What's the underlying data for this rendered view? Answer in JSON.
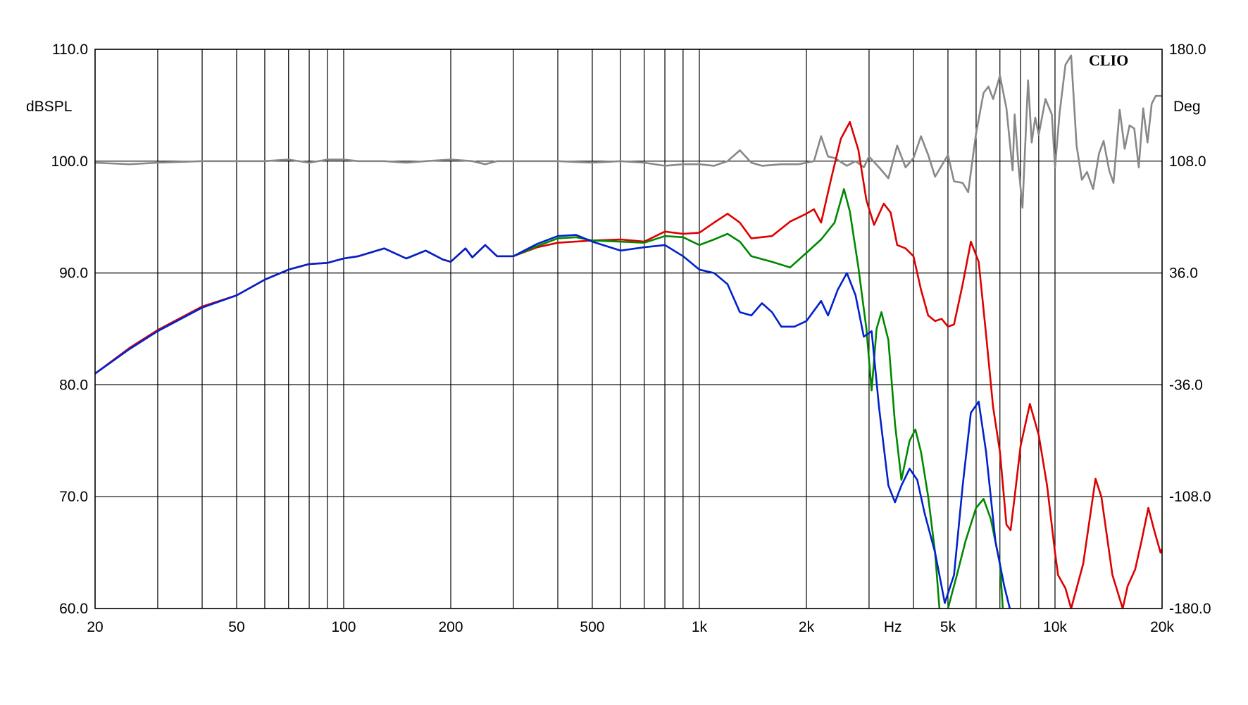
{
  "chart_data": {
    "type": "line",
    "brand": "CLIO",
    "x_scale": "log",
    "xlim": [
      20,
      20000
    ],
    "x_ticks": [
      {
        "value": 20,
        "label": "20"
      },
      {
        "value": 50,
        "label": "50"
      },
      {
        "value": 100,
        "label": "100"
      },
      {
        "value": 200,
        "label": "200"
      },
      {
        "value": 500,
        "label": "500"
      },
      {
        "value": 1000,
        "label": "1k"
      },
      {
        "value": 2000,
        "label": "2k"
      },
      {
        "value": 5000,
        "label": "5k"
      },
      {
        "value": 10000,
        "label": "10k"
      },
      {
        "value": 20000,
        "label": "20k"
      }
    ],
    "x_unit_label": "Hz",
    "x_unit_position_hz": 3500,
    "x_gridlines": [
      20,
      30,
      40,
      50,
      60,
      70,
      80,
      90,
      100,
      200,
      300,
      400,
      500,
      600,
      700,
      800,
      900,
      1000,
      2000,
      3000,
      4000,
      5000,
      6000,
      7000,
      8000,
      9000,
      10000,
      20000
    ],
    "y_left": {
      "label": "dBSPL",
      "lim": [
        60,
        110
      ],
      "ticks": [
        {
          "value": 110,
          "label": "110.0"
        },
        {
          "value": 100,
          "label": "100.0"
        },
        {
          "value": 90,
          "label": "90.0"
        },
        {
          "value": 80,
          "label": "80.0"
        },
        {
          "value": 70,
          "label": "70.0"
        },
        {
          "value": 60,
          "label": "60.0"
        }
      ]
    },
    "y_right": {
      "label": "Deg",
      "lim": [
        -180,
        180
      ],
      "ticks": [
        {
          "value": 180,
          "label": "180.0"
        },
        {
          "value": 108,
          "label": "108.0"
        },
        {
          "value": 36,
          "label": "36.0"
        },
        {
          "value": -36,
          "label": "-36.0"
        },
        {
          "value": -108,
          "label": "-108.0"
        },
        {
          "value": -180,
          "label": "-180.0"
        }
      ]
    },
    "grid": true,
    "series": [
      {
        "color": "#888888",
        "axis": "right",
        "points": [
          [
            20,
            107
          ],
          [
            25,
            106
          ],
          [
            30,
            107
          ],
          [
            40,
            108
          ],
          [
            50,
            108
          ],
          [
            60,
            108
          ],
          [
            70,
            109
          ],
          [
            80,
            107
          ],
          [
            90,
            109
          ],
          [
            100,
            109
          ],
          [
            110,
            108
          ],
          [
            130,
            108
          ],
          [
            150,
            107
          ],
          [
            170,
            108
          ],
          [
            200,
            109
          ],
          [
            230,
            108
          ],
          [
            250,
            106
          ],
          [
            270,
            108
          ],
          [
            300,
            108
          ],
          [
            400,
            108
          ],
          [
            500,
            107
          ],
          [
            600,
            108
          ],
          [
            700,
            107
          ],
          [
            800,
            105
          ],
          [
            900,
            106
          ],
          [
            1000,
            106
          ],
          [
            1100,
            105
          ],
          [
            1200,
            108
          ],
          [
            1300,
            115
          ],
          [
            1400,
            107
          ],
          [
            1500,
            105
          ],
          [
            1700,
            106
          ],
          [
            1900,
            106
          ],
          [
            2000,
            107
          ],
          [
            2100,
            108
          ],
          [
            2200,
            124
          ],
          [
            2300,
            111
          ],
          [
            2400,
            110
          ],
          [
            2600,
            105
          ],
          [
            2750,
            108
          ],
          [
            2900,
            104
          ],
          [
            3000,
            111
          ],
          [
            3200,
            104
          ],
          [
            3400,
            97
          ],
          [
            3600,
            118
          ],
          [
            3800,
            104
          ],
          [
            4000,
            110
          ],
          [
            4200,
            124
          ],
          [
            4400,
            112
          ],
          [
            4600,
            98
          ],
          [
            5000,
            112
          ],
          [
            5200,
            95
          ],
          [
            5500,
            94
          ],
          [
            5700,
            88
          ],
          [
            6000,
            126
          ],
          [
            6300,
            152
          ],
          [
            6500,
            156
          ],
          [
            6700,
            148
          ],
          [
            7000,
            163
          ],
          [
            7300,
            142
          ],
          [
            7600,
            102
          ],
          [
            7700,
            138
          ],
          [
            7900,
            104
          ],
          [
            8100,
            78
          ],
          [
            8400,
            160
          ],
          [
            8600,
            120
          ],
          [
            8800,
            136
          ],
          [
            9000,
            125
          ],
          [
            9400,
            148
          ],
          [
            9800,
            138
          ],
          [
            10000,
            104
          ],
          [
            10300,
            139
          ],
          [
            10700,
            170
          ],
          [
            11100,
            176
          ],
          [
            11500,
            118
          ],
          [
            11900,
            96
          ],
          [
            12300,
            101
          ],
          [
            12800,
            90
          ],
          [
            13300,
            113
          ],
          [
            13700,
            121
          ],
          [
            14200,
            102
          ],
          [
            14600,
            94
          ],
          [
            15200,
            141
          ],
          [
            15700,
            116
          ],
          [
            16200,
            131
          ],
          [
            16700,
            129
          ],
          [
            17200,
            104
          ],
          [
            17700,
            142
          ],
          [
            18200,
            120
          ],
          [
            18700,
            145
          ],
          [
            19200,
            150
          ],
          [
            19600,
            150
          ],
          [
            20000,
            150
          ]
        ]
      },
      {
        "color": "#dd0000",
        "axis": "left",
        "points": [
          [
            20,
            81
          ],
          [
            25,
            83.3
          ],
          [
            30,
            84.9
          ],
          [
            40,
            87
          ],
          [
            50,
            88
          ],
          [
            60,
            89.4
          ],
          [
            70,
            90.3
          ],
          [
            80,
            90.8
          ],
          [
            90,
            90.9
          ],
          [
            100,
            91.3
          ],
          [
            110,
            91.5
          ],
          [
            130,
            92.2
          ],
          [
            150,
            91.3
          ],
          [
            170,
            92
          ],
          [
            190,
            91.2
          ],
          [
            200,
            91
          ],
          [
            220,
            92.2
          ],
          [
            230,
            91.4
          ],
          [
            250,
            92.5
          ],
          [
            270,
            91.5
          ],
          [
            300,
            91.5
          ],
          [
            350,
            92.3
          ],
          [
            400,
            92.7
          ],
          [
            500,
            92.9
          ],
          [
            600,
            93
          ],
          [
            700,
            92.8
          ],
          [
            800,
            93.7
          ],
          [
            900,
            93.5
          ],
          [
            1000,
            93.6
          ],
          [
            1100,
            94.5
          ],
          [
            1200,
            95.3
          ],
          [
            1300,
            94.5
          ],
          [
            1400,
            93.1
          ],
          [
            1600,
            93.3
          ],
          [
            1800,
            94.6
          ],
          [
            2000,
            95.3
          ],
          [
            2100,
            95.7
          ],
          [
            2200,
            94.5
          ],
          [
            2350,
            98.5
          ],
          [
            2500,
            102
          ],
          [
            2650,
            103.5
          ],
          [
            2800,
            101
          ],
          [
            2950,
            96.5
          ],
          [
            3100,
            94.3
          ],
          [
            3300,
            96.2
          ],
          [
            3450,
            95.4
          ],
          [
            3600,
            92.5
          ],
          [
            3800,
            92.2
          ],
          [
            4000,
            91.5
          ],
          [
            4200,
            88.5
          ],
          [
            4400,
            86.2
          ],
          [
            4600,
            85.7
          ],
          [
            4800,
            85.9
          ],
          [
            5000,
            85.2
          ],
          [
            5200,
            85.4
          ],
          [
            5500,
            89
          ],
          [
            5800,
            92.8
          ],
          [
            6100,
            91
          ],
          [
            6400,
            84.5
          ],
          [
            6700,
            78
          ],
          [
            7000,
            74
          ],
          [
            7300,
            67.5
          ],
          [
            7500,
            67
          ],
          [
            7700,
            70
          ],
          [
            8000,
            74.5
          ],
          [
            8500,
            78.3
          ],
          [
            9000,
            75.5
          ],
          [
            9500,
            71
          ],
          [
            10000,
            65
          ],
          [
            10200,
            63
          ],
          [
            10700,
            61.8
          ],
          [
            11100,
            60
          ],
          [
            12000,
            64
          ],
          [
            13000,
            71.6
          ],
          [
            13500,
            70
          ],
          [
            14500,
            63
          ],
          [
            15500,
            60
          ],
          [
            16000,
            62
          ],
          [
            16800,
            63.5
          ],
          [
            17500,
            66
          ],
          [
            18300,
            69
          ],
          [
            19000,
            67
          ],
          [
            19800,
            65
          ],
          [
            20000,
            65.3
          ]
        ]
      },
      {
        "color": "#008800",
        "axis": "left",
        "points": [
          [
            300,
            91.5
          ],
          [
            350,
            92.4
          ],
          [
            400,
            93.1
          ],
          [
            450,
            93.2
          ],
          [
            500,
            92.9
          ],
          [
            600,
            92.8
          ],
          [
            700,
            92.7
          ],
          [
            800,
            93.3
          ],
          [
            900,
            93.2
          ],
          [
            1000,
            92.5
          ],
          [
            1100,
            93
          ],
          [
            1200,
            93.5
          ],
          [
            1300,
            92.8
          ],
          [
            1400,
            91.5
          ],
          [
            1600,
            91
          ],
          [
            1800,
            90.5
          ],
          [
            2000,
            91.8
          ],
          [
            2200,
            93
          ],
          [
            2400,
            94.5
          ],
          [
            2550,
            97.5
          ],
          [
            2650,
            95.5
          ],
          [
            2800,
            90.5
          ],
          [
            2950,
            85
          ],
          [
            3050,
            79.5
          ],
          [
            3150,
            85
          ],
          [
            3250,
            86.5
          ],
          [
            3400,
            84
          ],
          [
            3550,
            76.5
          ],
          [
            3700,
            71.5
          ],
          [
            3900,
            75
          ],
          [
            4050,
            76
          ],
          [
            4200,
            74
          ],
          [
            4400,
            70
          ],
          [
            4600,
            65
          ],
          [
            4800,
            57.5
          ],
          [
            5000,
            60
          ],
          [
            5300,
            63
          ],
          [
            5600,
            66
          ],
          [
            6000,
            69
          ],
          [
            6300,
            69.8
          ],
          [
            6600,
            68
          ],
          [
            7000,
            64
          ],
          [
            7200,
            58
          ]
        ]
      },
      {
        "color": "#0022cc",
        "axis": "left",
        "points": [
          [
            20,
            81
          ],
          [
            25,
            83.2
          ],
          [
            30,
            84.8
          ],
          [
            40,
            86.9
          ],
          [
            50,
            88
          ],
          [
            60,
            89.4
          ],
          [
            70,
            90.3
          ],
          [
            80,
            90.8
          ],
          [
            90,
            90.9
          ],
          [
            100,
            91.3
          ],
          [
            110,
            91.5
          ],
          [
            130,
            92.2
          ],
          [
            150,
            91.3
          ],
          [
            170,
            92
          ],
          [
            190,
            91.2
          ],
          [
            200,
            91
          ],
          [
            220,
            92.2
          ],
          [
            230,
            91.4
          ],
          [
            250,
            92.5
          ],
          [
            270,
            91.5
          ],
          [
            300,
            91.5
          ],
          [
            350,
            92.6
          ],
          [
            400,
            93.3
          ],
          [
            450,
            93.4
          ],
          [
            500,
            92.8
          ],
          [
            600,
            92
          ],
          [
            700,
            92.3
          ],
          [
            800,
            92.5
          ],
          [
            900,
            91.5
          ],
          [
            1000,
            90.3
          ],
          [
            1100,
            90
          ],
          [
            1200,
            89
          ],
          [
            1300,
            86.5
          ],
          [
            1400,
            86.2
          ],
          [
            1500,
            87.3
          ],
          [
            1600,
            86.5
          ],
          [
            1700,
            85.2
          ],
          [
            1850,
            85.2
          ],
          [
            2000,
            85.7
          ],
          [
            2200,
            87.5
          ],
          [
            2300,
            86.2
          ],
          [
            2450,
            88.5
          ],
          [
            2600,
            90
          ],
          [
            2750,
            88
          ],
          [
            2900,
            84.3
          ],
          [
            3050,
            84.8
          ],
          [
            3200,
            78
          ],
          [
            3400,
            71
          ],
          [
            3550,
            69.5
          ],
          [
            3700,
            71
          ],
          [
            3900,
            72.5
          ],
          [
            4100,
            71.5
          ],
          [
            4300,
            68.5
          ],
          [
            4600,
            65
          ],
          [
            4900,
            60.5
          ],
          [
            5200,
            63
          ],
          [
            5500,
            71
          ],
          [
            5800,
            77.5
          ],
          [
            6100,
            78.5
          ],
          [
            6400,
            74
          ],
          [
            6800,
            66
          ],
          [
            7200,
            62
          ],
          [
            7600,
            59
          ]
        ]
      }
    ]
  }
}
